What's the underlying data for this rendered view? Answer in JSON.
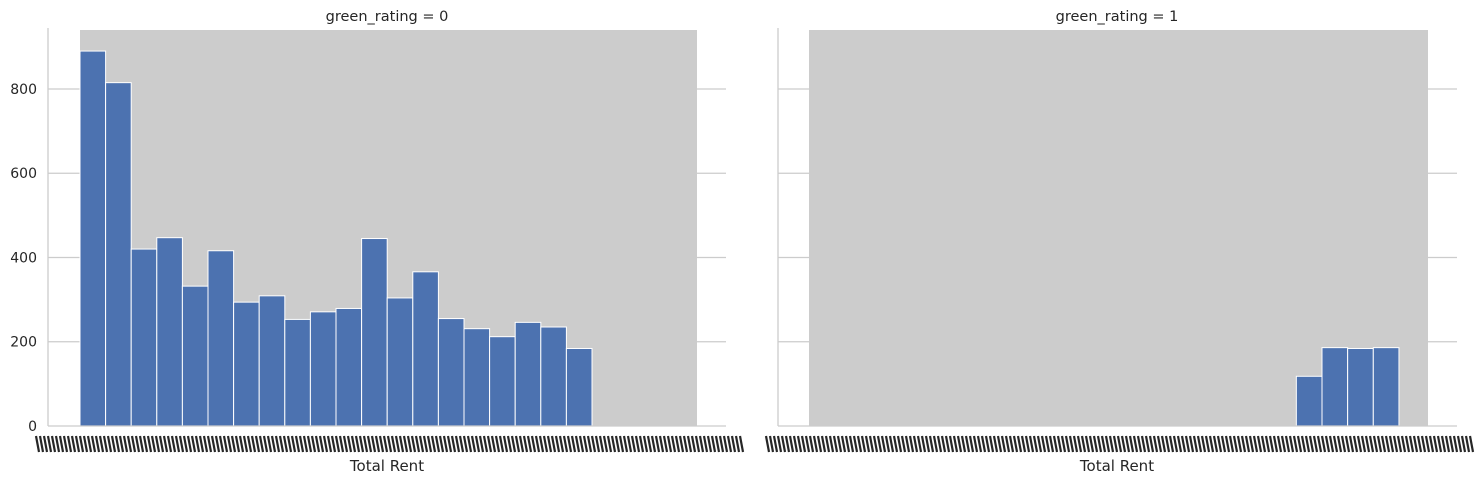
{
  "chart_data": [
    {
      "type": "bar",
      "title": "green_rating = 0",
      "xlabel": "Total Rent",
      "ylabel": "",
      "ylim": [
        0,
        940
      ],
      "yticks": [
        0,
        200,
        400,
        600,
        800
      ],
      "grid": "horizontal",
      "values": [
        890,
        815,
        420,
        447,
        332,
        416,
        294,
        309,
        253,
        271,
        279,
        445,
        304,
        366,
        255,
        231,
        212,
        246,
        235,
        184
      ],
      "bar_color": "#4c72b0",
      "background_band_color": "#cccccc"
    },
    {
      "type": "bar",
      "title": "green_rating = 1",
      "xlabel": "Total Rent",
      "ylabel": "",
      "ylim": [
        0,
        940
      ],
      "yticks": [
        0,
        200,
        400,
        600,
        800
      ],
      "grid": "horizontal",
      "values": [
        0,
        0,
        0,
        0,
        0,
        0,
        0,
        0,
        0,
        0,
        0,
        0,
        0,
        0,
        0,
        0,
        0,
        0,
        0,
        118,
        186,
        184,
        186
      ],
      "bar_color": "#4c72b0",
      "background_band_color": "#cccccc"
    }
  ]
}
